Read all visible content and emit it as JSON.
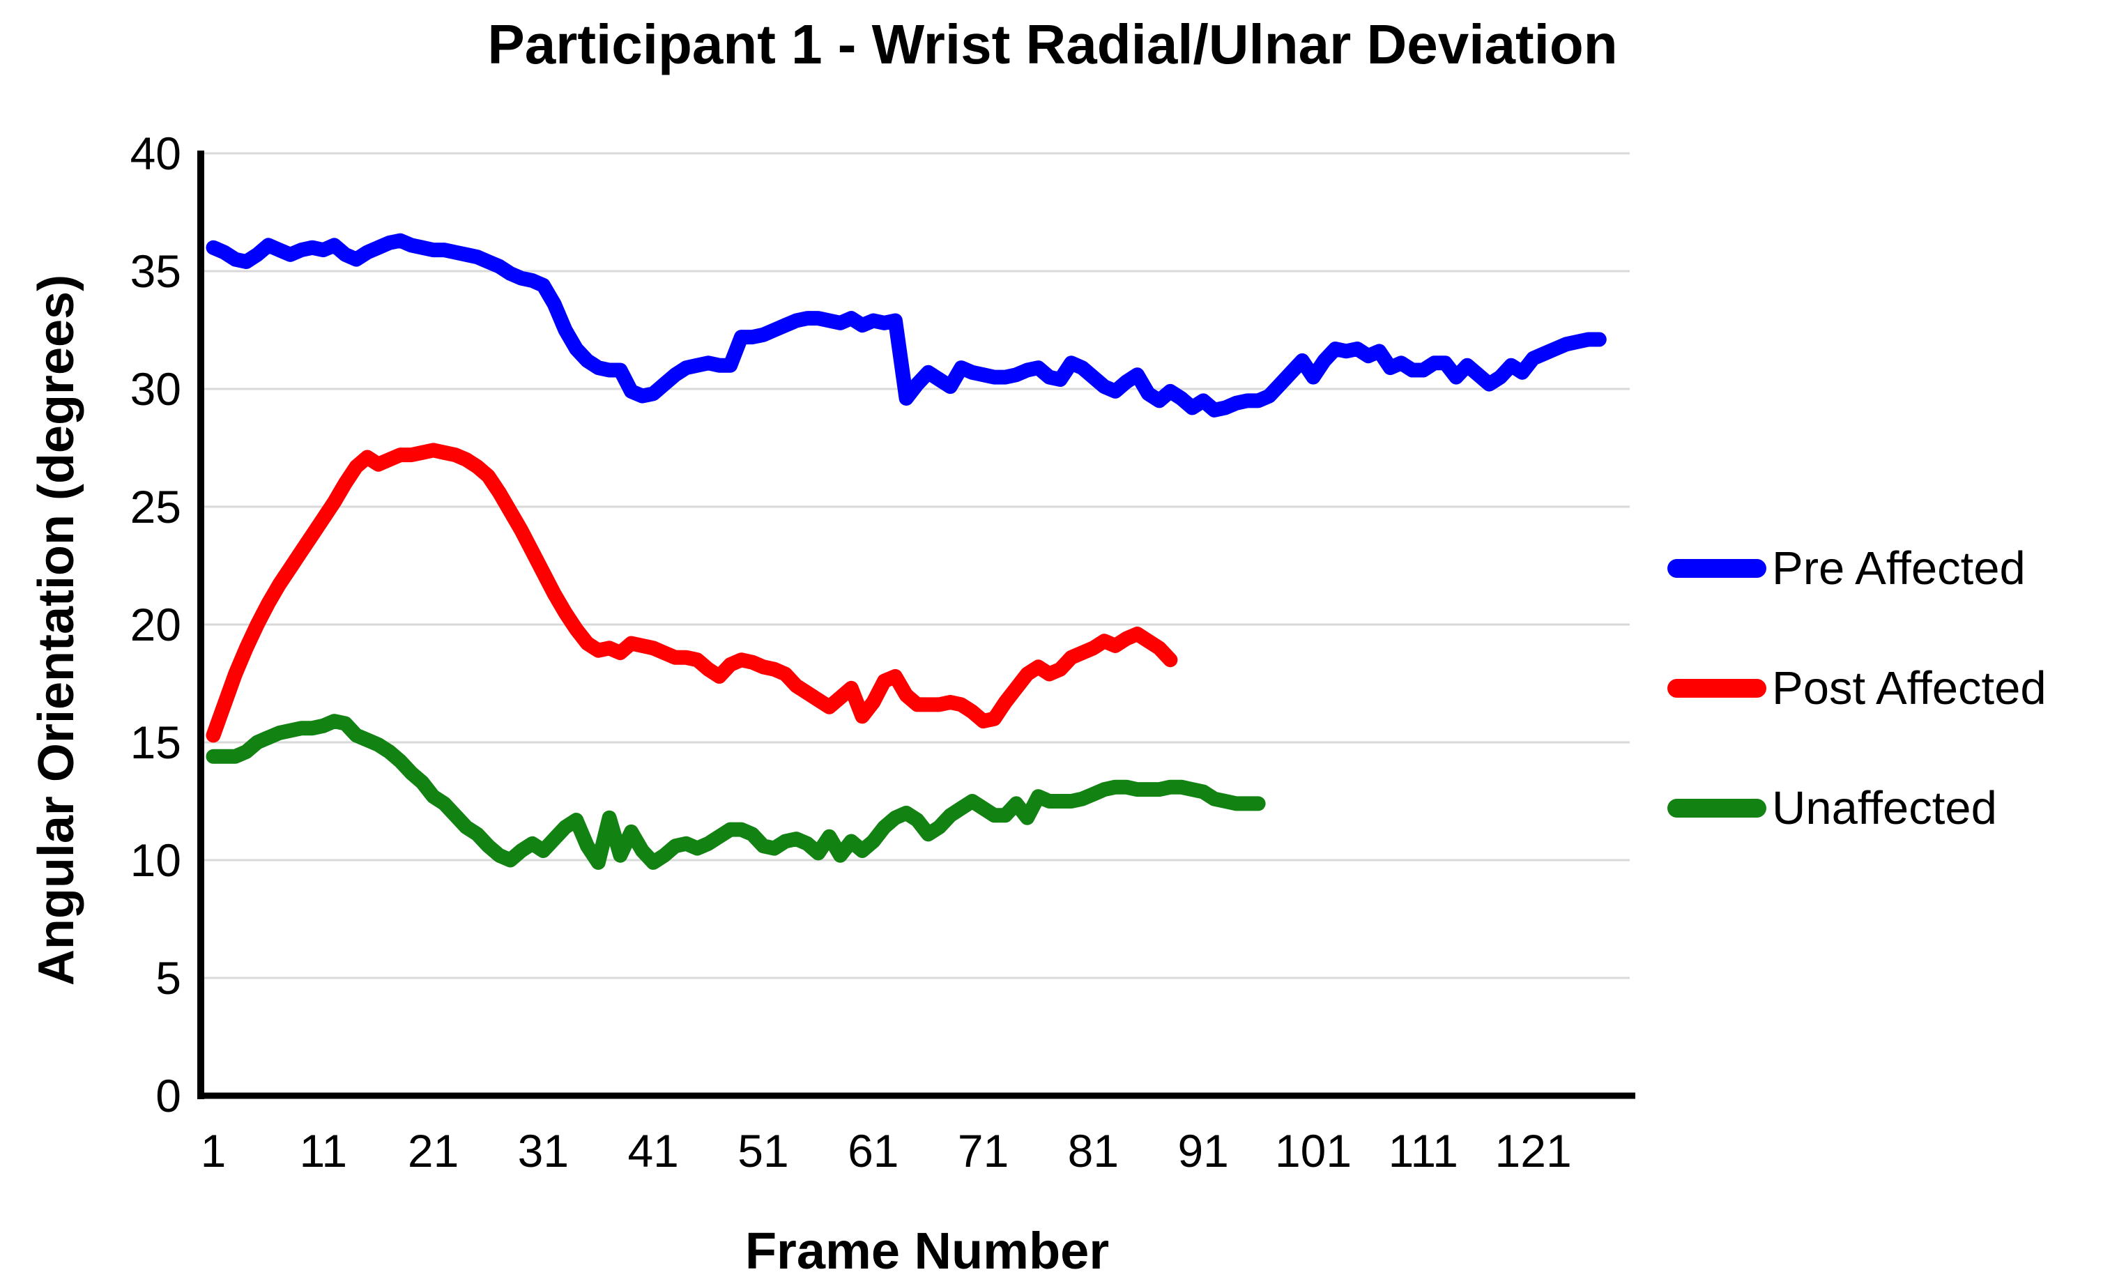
{
  "title": "Participant 1 - Wrist Radial/Ulnar Deviation",
  "chart_data": {
    "type": "line",
    "title": "Participant 1 - Wrist Radial/Ulnar Deviation",
    "xlabel": "Frame Number",
    "ylabel": "Angular Orientation (degrees)",
    "xticks": [
      1,
      11,
      21,
      31,
      41,
      51,
      61,
      71,
      81,
      91,
      101,
      111,
      121
    ],
    "yticks": [
      0,
      5,
      10,
      15,
      20,
      25,
      30,
      35,
      40
    ],
    "ylim": [
      0,
      40
    ],
    "xlim": [
      1,
      129
    ],
    "x_start_frame": 1,
    "grid": "horizontal",
    "gridline_color": "#d9d9d9",
    "axis_color": "#000000",
    "legend_position": "right",
    "series": [
      {
        "name": "Pre Affected",
        "color": "#0000ff",
        "values": [
          36.0,
          35.8,
          35.5,
          35.4,
          35.7,
          36.1,
          35.9,
          35.7,
          35.9,
          36.0,
          35.9,
          36.1,
          35.7,
          35.5,
          35.8,
          36.0,
          36.2,
          36.3,
          36.1,
          36.0,
          35.9,
          35.9,
          35.8,
          35.7,
          35.6,
          35.4,
          35.2,
          34.9,
          34.7,
          34.6,
          34.4,
          33.6,
          32.5,
          31.7,
          31.2,
          30.9,
          30.8,
          30.8,
          29.9,
          29.7,
          29.8,
          30.2,
          30.6,
          30.9,
          31.0,
          31.1,
          31.0,
          31.0,
          32.2,
          32.2,
          32.3,
          32.5,
          32.7,
          32.9,
          33.0,
          33.0,
          32.9,
          32.8,
          33.0,
          32.7,
          32.9,
          32.8,
          32.9,
          29.6,
          30.2,
          30.7,
          30.4,
          30.1,
          30.9,
          30.7,
          30.6,
          30.5,
          30.5,
          30.6,
          30.8,
          30.9,
          30.5,
          30.4,
          31.1,
          30.9,
          30.5,
          30.1,
          29.9,
          30.3,
          30.6,
          29.8,
          29.5,
          29.9,
          29.6,
          29.2,
          29.5,
          29.1,
          29.2,
          29.4,
          29.5,
          29.5,
          29.7,
          30.2,
          30.7,
          31.2,
          30.5,
          31.2,
          31.7,
          31.6,
          31.7,
          31.4,
          31.6,
          30.9,
          31.1,
          30.8,
          30.8,
          31.1,
          31.1,
          30.5,
          31.0,
          30.6,
          30.2,
          30.5,
          31.0,
          30.7,
          31.3,
          31.5,
          31.7,
          31.9,
          32.0,
          32.1,
          32.1
        ]
      },
      {
        "name": "Post Affected",
        "color": "#ff0000",
        "values": [
          15.3,
          16.6,
          17.9,
          19.0,
          20.0,
          20.9,
          21.7,
          22.4,
          23.1,
          23.8,
          24.5,
          25.2,
          26.0,
          26.7,
          27.1,
          26.8,
          27.0,
          27.2,
          27.2,
          27.3,
          27.4,
          27.3,
          27.2,
          27.0,
          26.7,
          26.3,
          25.6,
          24.8,
          24.0,
          23.1,
          22.2,
          21.3,
          20.5,
          19.8,
          19.2,
          18.9,
          19.0,
          18.8,
          19.2,
          19.1,
          19.0,
          18.8,
          18.6,
          18.6,
          18.5,
          18.1,
          17.8,
          18.3,
          18.5,
          18.4,
          18.2,
          18.1,
          17.9,
          17.4,
          17.1,
          16.8,
          16.5,
          16.9,
          17.3,
          16.1,
          16.7,
          17.6,
          17.8,
          17.0,
          16.6,
          16.6,
          16.6,
          16.7,
          16.6,
          16.3,
          15.9,
          16.0,
          16.7,
          17.3,
          17.9,
          18.2,
          17.9,
          18.1,
          18.6,
          18.8,
          19.0,
          19.3,
          19.1,
          19.4,
          19.6,
          19.3,
          19.0,
          18.5
        ]
      },
      {
        "name": "Unaffected",
        "color": "#128212",
        "values": [
          14.4,
          14.4,
          14.4,
          14.6,
          15.0,
          15.2,
          15.4,
          15.5,
          15.6,
          15.6,
          15.7,
          15.9,
          15.8,
          15.3,
          15.1,
          14.9,
          14.6,
          14.2,
          13.7,
          13.3,
          12.7,
          12.4,
          11.9,
          11.4,
          11.1,
          10.6,
          10.2,
          10.0,
          10.4,
          10.7,
          10.4,
          10.9,
          11.4,
          11.7,
          10.6,
          9.9,
          11.8,
          10.2,
          11.2,
          10.4,
          9.9,
          10.2,
          10.6,
          10.7,
          10.5,
          10.7,
          11.0,
          11.3,
          11.3,
          11.1,
          10.6,
          10.5,
          10.8,
          10.9,
          10.7,
          10.3,
          11.0,
          10.2,
          10.8,
          10.4,
          10.8,
          11.4,
          11.8,
          12.0,
          11.7,
          11.1,
          11.4,
          11.9,
          12.2,
          12.5,
          12.2,
          11.9,
          11.9,
          12.4,
          11.8,
          12.7,
          12.5,
          12.5,
          12.5,
          12.6,
          12.8,
          13.0,
          13.1,
          13.1,
          13.0,
          13.0,
          13.0,
          13.1,
          13.1,
          13.0,
          12.9,
          12.6,
          12.5,
          12.4,
          12.4,
          12.4
        ]
      }
    ]
  }
}
